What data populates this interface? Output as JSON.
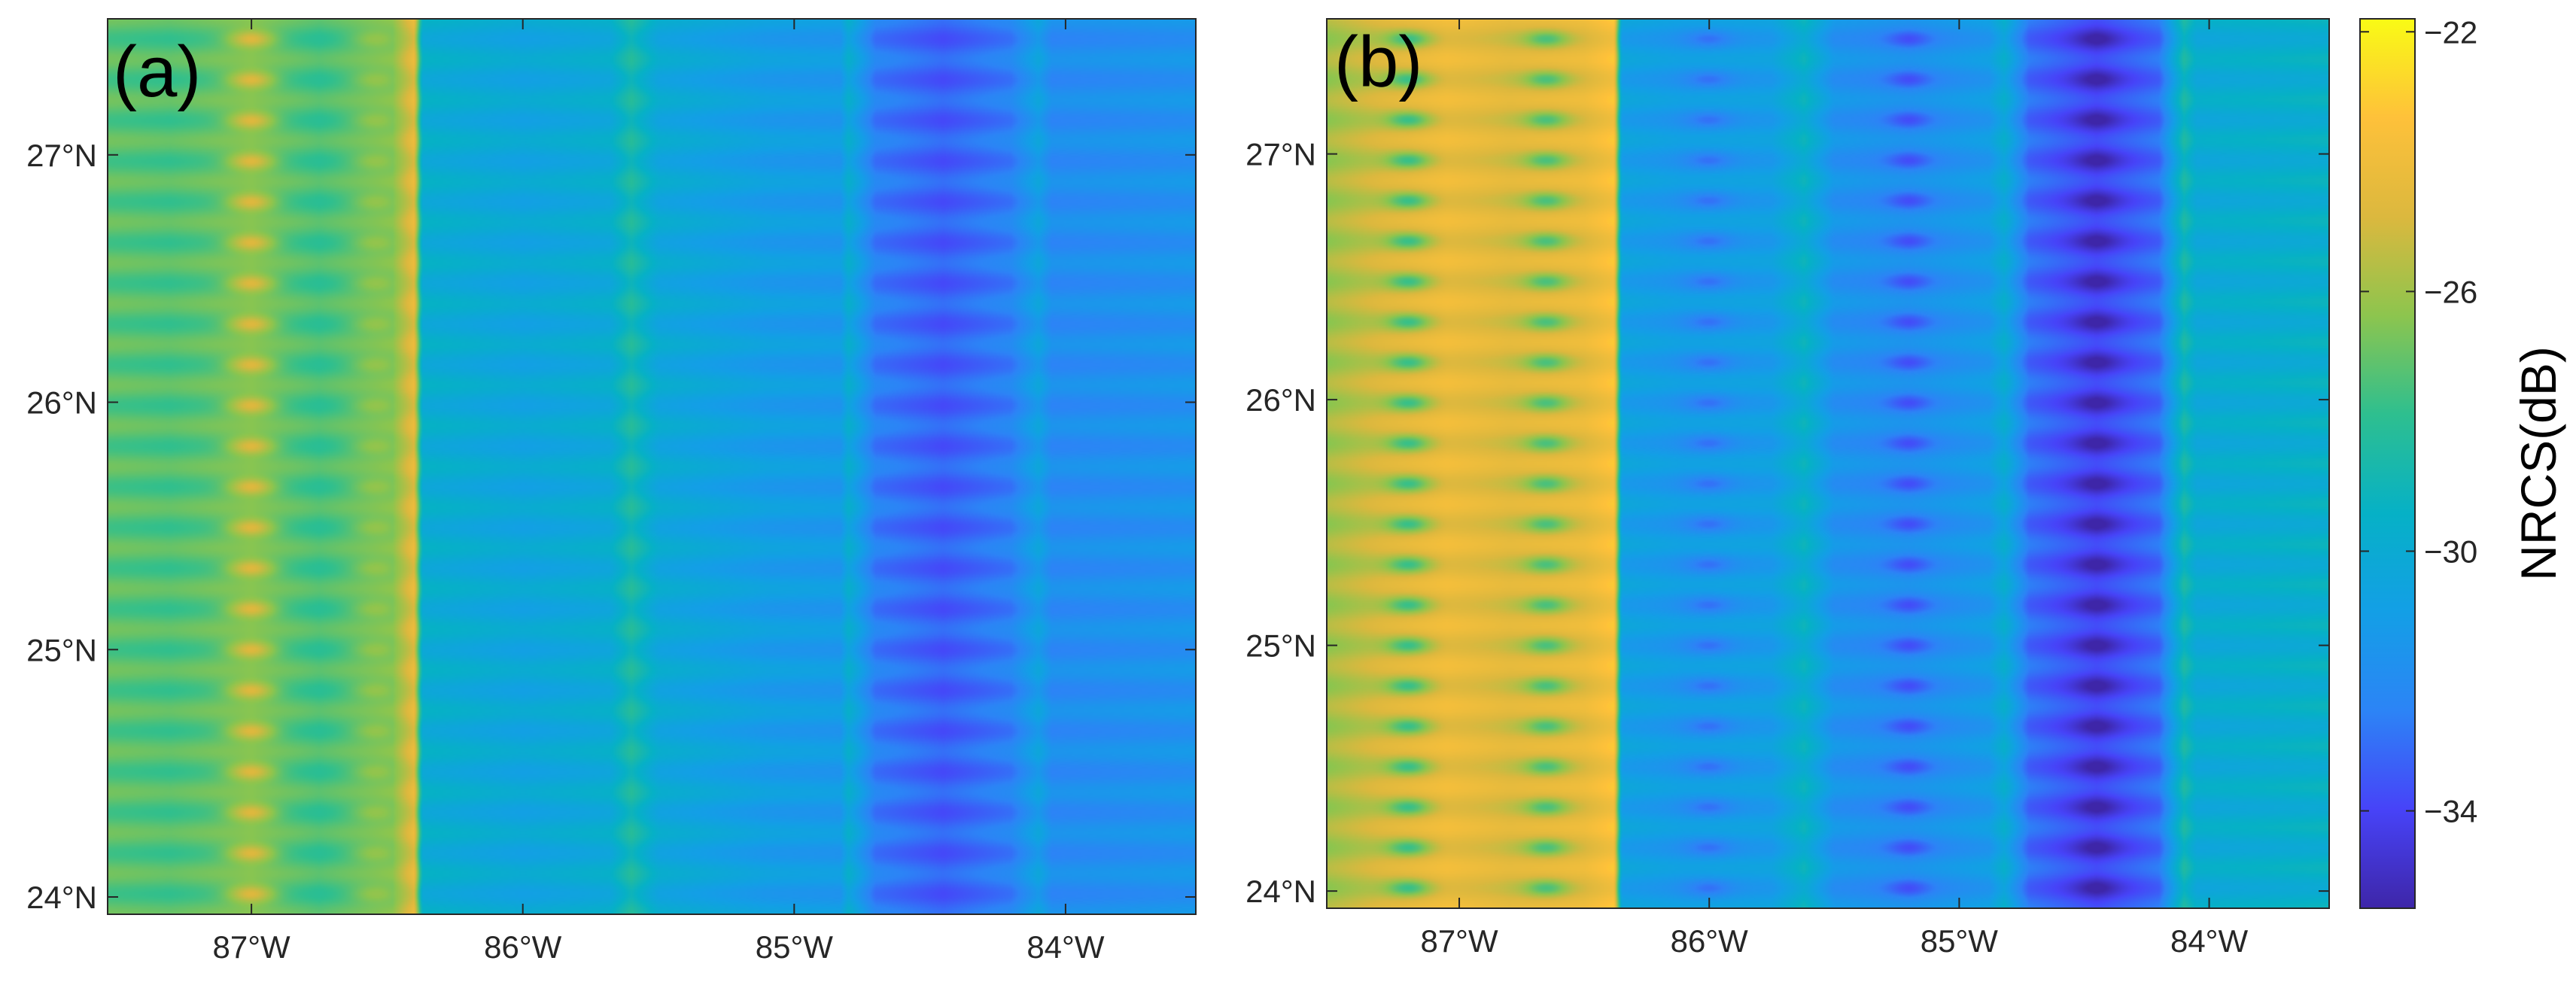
{
  "chart_data": {
    "type": "heatmap",
    "figure_description_free": true,
    "colormap": "parula",
    "colormap_stops": [
      "#3e26a8",
      "#4743f8",
      "#2c84f6",
      "#139fe6",
      "#06b1c6",
      "#2ebf8f",
      "#8dc54e",
      "#dcb83e",
      "#fec13a",
      "#f9fb15"
    ],
    "colorbar": {
      "label": "NRCS(dB)",
      "range": [
        -35.5,
        -21.8
      ],
      "ticks": [
        {
          "value": -22,
          "label": "−22"
        },
        {
          "value": -26,
          "label": "−26"
        },
        {
          "value": -30,
          "label": "−30"
        },
        {
          "value": -34,
          "label": "−34"
        }
      ]
    },
    "xlim": [
      -87.53,
      -83.52
    ],
    "ylim": [
      23.93,
      27.55
    ],
    "x_ticks": [
      {
        "value": -87,
        "label": "87°W"
      },
      {
        "value": -86,
        "label": "86°W"
      },
      {
        "value": -85,
        "label": "85°W"
      },
      {
        "value": -84,
        "label": "84°W"
      }
    ],
    "y_ticks": [
      {
        "value": 24,
        "label": "24°N"
      },
      {
        "value": 25,
        "label": "25°N"
      },
      {
        "value": 26,
        "label": "26°N"
      },
      {
        "value": 27,
        "label": "27°N"
      }
    ],
    "panels": [
      {
        "label": "(a)",
        "stripe_count": 22,
        "lon_profile": [
          {
            "lon": -87.53,
            "nrcs": -27.2
          },
          {
            "lon": -87.3,
            "nrcs": -27.4
          },
          {
            "lon": -87.0,
            "nrcs": -26.9
          },
          {
            "lon": -86.75,
            "nrcs": -27.6
          },
          {
            "lon": -86.48,
            "nrcs": -26.8
          },
          {
            "lon": -86.4,
            "nrcs": -24.5
          },
          {
            "lon": -86.37,
            "nrcs": -29.8
          },
          {
            "lon": -86.0,
            "nrcs": -30.4
          },
          {
            "lon": -85.68,
            "nrcs": -30.0
          },
          {
            "lon": -85.6,
            "nrcs": -28.6
          },
          {
            "lon": -85.5,
            "nrcs": -30.2
          },
          {
            "lon": -85.1,
            "nrcs": -31.0
          },
          {
            "lon": -84.83,
            "nrcs": -31.2
          },
          {
            "lon": -84.8,
            "nrcs": -30.0
          },
          {
            "lon": -84.7,
            "nrcs": -32.6
          },
          {
            "lon": -84.45,
            "nrcs": -33.4
          },
          {
            "lon": -84.2,
            "nrcs": -32.5
          },
          {
            "lon": -84.1,
            "nrcs": -30.8
          },
          {
            "lon": -84.05,
            "nrcs": -32.0
          },
          {
            "lon": -83.52,
            "nrcs": -31.6
          }
        ],
        "dots": [
          {
            "lon": -87.0,
            "amp": 2.6
          },
          {
            "lon": -86.55,
            "amp": 1.2
          }
        ]
      },
      {
        "label": "(b)",
        "stripe_count": 22,
        "lon_profile": [
          {
            "lon": -87.53,
            "nrcs": -26.0
          },
          {
            "lon": -87.3,
            "nrcs": -25.0
          },
          {
            "lon": -87.05,
            "nrcs": -24.2
          },
          {
            "lon": -86.8,
            "nrcs": -24.8
          },
          {
            "lon": -86.5,
            "nrcs": -24.4
          },
          {
            "lon": -86.38,
            "nrcs": -23.5
          },
          {
            "lon": -86.35,
            "nrcs": -30.8
          },
          {
            "lon": -86.1,
            "nrcs": -31.2
          },
          {
            "lon": -85.75,
            "nrcs": -31.0
          },
          {
            "lon": -85.62,
            "nrcs": -29.5
          },
          {
            "lon": -85.5,
            "nrcs": -31.6
          },
          {
            "lon": -85.2,
            "nrcs": -32.0
          },
          {
            "lon": -84.88,
            "nrcs": -31.2
          },
          {
            "lon": -84.82,
            "nrcs": -30.0
          },
          {
            "lon": -84.72,
            "nrcs": -33.0
          },
          {
            "lon": -84.45,
            "nrcs": -34.2
          },
          {
            "lon": -84.2,
            "nrcs": -33.0
          },
          {
            "lon": -84.1,
            "nrcs": -28.8
          },
          {
            "lon": -84.05,
            "nrcs": -30.0
          },
          {
            "lon": -83.52,
            "nrcs": -29.6
          }
        ],
        "dots": [
          {
            "lon": -87.2,
            "amp": -2.6
          },
          {
            "lon": -86.65,
            "amp": -2.4
          },
          {
            "lon": -86.0,
            "amp": -1.3
          },
          {
            "lon": -85.2,
            "amp": -1.3
          },
          {
            "lon": -84.45,
            "amp": -1.2
          }
        ]
      }
    ]
  }
}
